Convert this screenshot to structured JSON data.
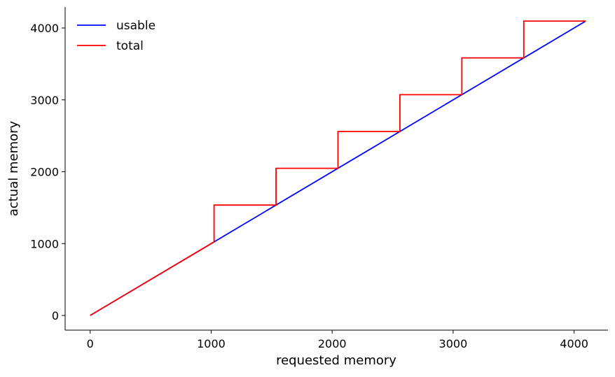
{
  "chart_data": {
    "type": "line",
    "title": "",
    "xlabel": "requested memory",
    "ylabel": "actual memory",
    "xlim": [
      -207,
      4280
    ],
    "ylim": [
      -204,
      4292
    ],
    "xticks": [
      0,
      1000,
      2000,
      3000,
      4000
    ],
    "yticks": [
      0,
      1000,
      2000,
      3000,
      4000
    ],
    "grid": false,
    "legend_position": "top-left",
    "series": [
      {
        "name": "usable",
        "color": "#0000ff",
        "points": [
          [
            0,
            0
          ],
          [
            4096,
            4096
          ]
        ]
      },
      {
        "name": "total",
        "color": "#ff0000",
        "points": [
          [
            0,
            0
          ],
          [
            1024,
            1024
          ],
          [
            1024,
            1536
          ],
          [
            1536,
            1536
          ],
          [
            1536,
            2048
          ],
          [
            2048,
            2048
          ],
          [
            2048,
            2560
          ],
          [
            2560,
            2560
          ],
          [
            2560,
            3072
          ],
          [
            3072,
            3072
          ],
          [
            3072,
            3584
          ],
          [
            3584,
            3584
          ],
          [
            3584,
            4096
          ],
          [
            4096,
            4096
          ]
        ]
      }
    ]
  }
}
